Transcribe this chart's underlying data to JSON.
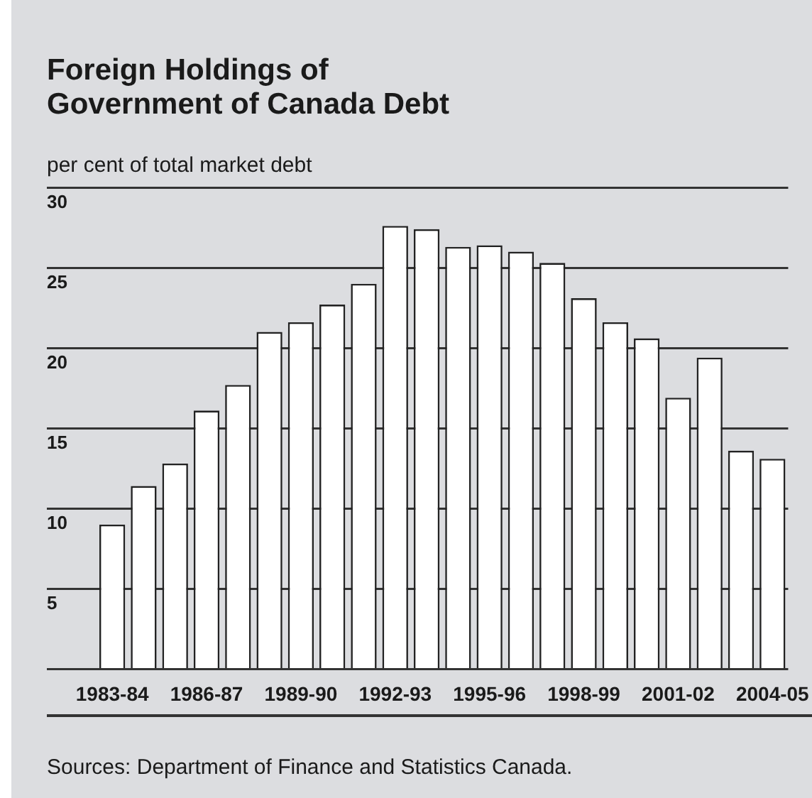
{
  "chart_data": {
    "type": "bar",
    "title": "Foreign Holdings of\nGovernment of Canada Debt",
    "ylabel": "per cent of total market debt",
    "categories": [
      "1983-84",
      null,
      null,
      "1986-87",
      null,
      null,
      "1989-90",
      null,
      null,
      "1992-93",
      null,
      null,
      "1995-96",
      null,
      null,
      "1998-99",
      null,
      null,
      "2001-02",
      null,
      null,
      "2004-05"
    ],
    "values": [
      9.0,
      11.4,
      12.8,
      16.1,
      17.7,
      21.0,
      21.6,
      22.7,
      24.0,
      27.6,
      27.4,
      26.3,
      26.4,
      26.0,
      25.3,
      23.1,
      21.6,
      20.6,
      16.9,
      19.4,
      13.6,
      13.1
    ],
    "color": "#ffffff",
    "ylim": [
      0,
      30
    ],
    "yticks": [
      {
        "value": 0,
        "label": null
      },
      5,
      10,
      15,
      20,
      25,
      30
    ],
    "grid": "y",
    "legend": false,
    "annotations": [
      "Sources: Department of Finance and Statistics Canada."
    ]
  }
}
